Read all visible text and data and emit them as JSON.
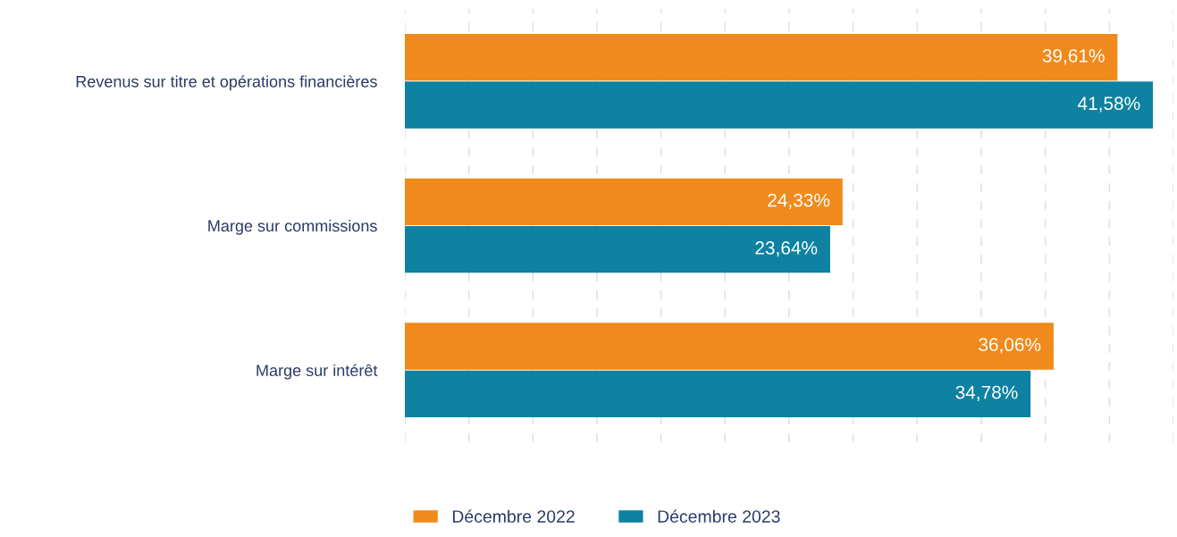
{
  "chart_data": {
    "type": "bar",
    "orientation": "horizontal",
    "categories": [
      "Revenus sur titre et opérations financières",
      "Marge sur commissions",
      "Marge sur intérêt"
    ],
    "series": [
      {
        "name": "Décembre 2022",
        "color": "#f08a1c",
        "values": [
          39.61,
          24.33,
          36.06
        ],
        "value_labels": [
          "39,61%",
          "24,33%",
          "36,06%"
        ]
      },
      {
        "name": "Décembre 2023",
        "color": "#0e82a0",
        "values": [
          41.58,
          23.64,
          34.78
        ],
        "value_labels": [
          "41,58%",
          "23,64%",
          "34,78%"
        ]
      }
    ],
    "xlim": [
      0,
      42.72
    ],
    "xticks": [
      {
        "value": 0,
        "label": null
      },
      {
        "value": 3.56,
        "label": null
      },
      {
        "value": 7.12,
        "label": null
      },
      {
        "value": 10.68,
        "label": null
      },
      {
        "value": 14.24,
        "label": null
      },
      {
        "value": 17.8,
        "label": null
      },
      {
        "value": 21.36,
        "label": null
      },
      {
        "value": 24.92,
        "label": null
      },
      {
        "value": 28.48,
        "label": null
      },
      {
        "value": 32.04,
        "label": null
      },
      {
        "value": 35.6,
        "label": null
      },
      {
        "value": 39.16,
        "label": null
      },
      {
        "value": 42.72,
        "label": null
      }
    ],
    "grid": "x",
    "legend": "bottom",
    "tick_labels": "y"
  }
}
